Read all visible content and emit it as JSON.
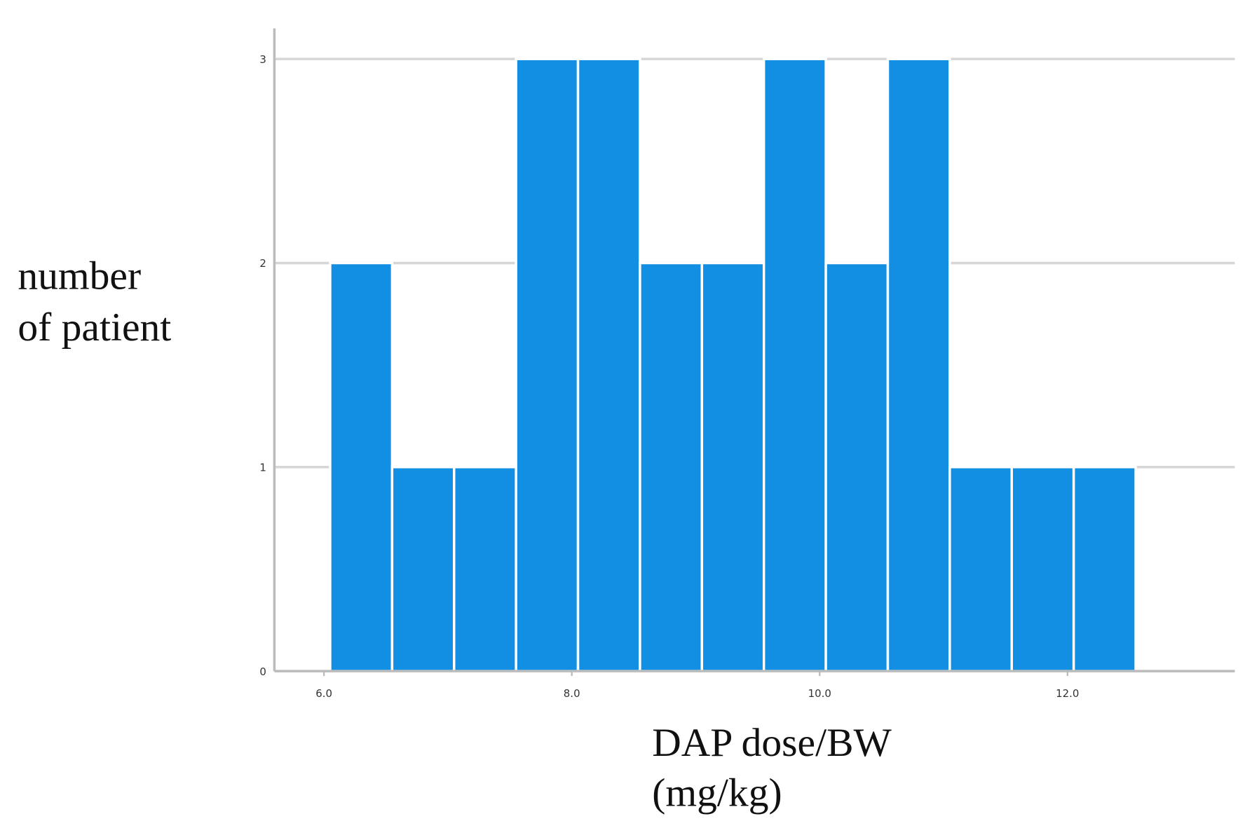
{
  "chart_data": {
    "type": "histogram",
    "xlabel": [
      "DAP dose/BW",
      "(mg/kg)"
    ],
    "ylabel": [
      "number",
      "of patient"
    ],
    "bins": [
      6.05,
      6.55,
      7.05,
      7.55,
      8.05,
      8.55,
      9.05,
      9.55,
      10.05,
      10.55,
      11.05,
      11.55,
      12.05,
      12.55
    ],
    "values": [
      2,
      1,
      1,
      3,
      3,
      2,
      2,
      3,
      2,
      3,
      1,
      1,
      1
    ],
    "color": "#128fe3",
    "xlim": [
      5.6,
      13.35
    ],
    "ylim": [
      0,
      3.15
    ],
    "xticks": [
      {
        "value": 6,
        "label": "6.0"
      },
      {
        "value": 8,
        "label": "8.0"
      },
      {
        "value": 10,
        "label": "10.0"
      },
      {
        "value": 12,
        "label": "12.0"
      }
    ],
    "yticks": [
      0,
      1,
      2,
      3
    ],
    "grid": true
  }
}
